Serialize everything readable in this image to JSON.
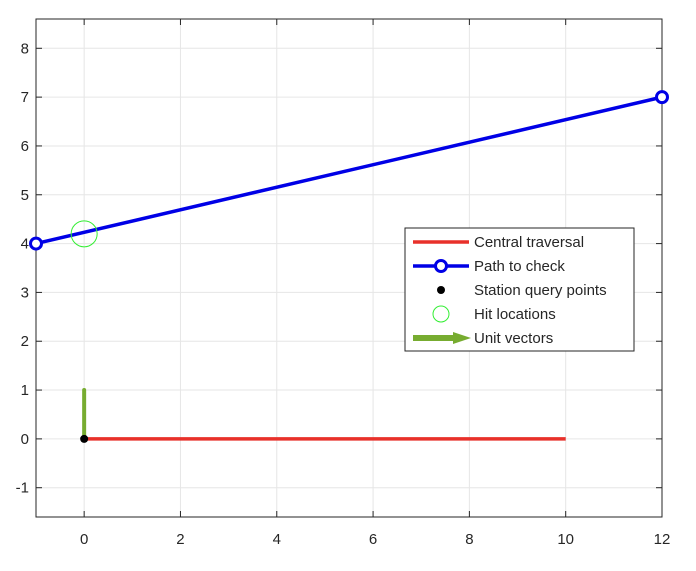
{
  "chart_data": {
    "type": "line",
    "title": "",
    "xlabel": "",
    "ylabel": "",
    "xlim": [
      -1,
      12
    ],
    "ylim": [
      -1.6,
      8.6
    ],
    "x_ticks": [
      "0",
      "2",
      "4",
      "6",
      "8",
      "10",
      "12"
    ],
    "y_ticks": [
      "-1",
      "0",
      "1",
      "2",
      "3",
      "4",
      "5",
      "6",
      "7",
      "8"
    ],
    "grid": true,
    "legend_position": "right",
    "series": [
      {
        "name": "Central traversal",
        "kind": "line",
        "color": "#e8302a",
        "points": [
          [
            0,
            0
          ],
          [
            10,
            0
          ]
        ]
      },
      {
        "name": "Path to check",
        "kind": "line-with-markers",
        "color": "#0000e6",
        "marker": "circle",
        "points": [
          [
            -1,
            4
          ],
          [
            12,
            7
          ]
        ]
      },
      {
        "name": "Station query points",
        "kind": "scatter",
        "color": "#000000",
        "marker": "filled-circle",
        "points": [
          [
            0,
            0
          ]
        ]
      },
      {
        "name": "Hit locations",
        "kind": "scatter",
        "color": "#33ee33",
        "marker": "open-circle",
        "points": [
          [
            0,
            4.2
          ]
        ]
      },
      {
        "name": "Unit vectors",
        "kind": "quiver",
        "color": "#77ac30",
        "vectors": [
          {
            "x": 0,
            "y": 0,
            "u": 0,
            "v": 1
          }
        ]
      }
    ]
  }
}
